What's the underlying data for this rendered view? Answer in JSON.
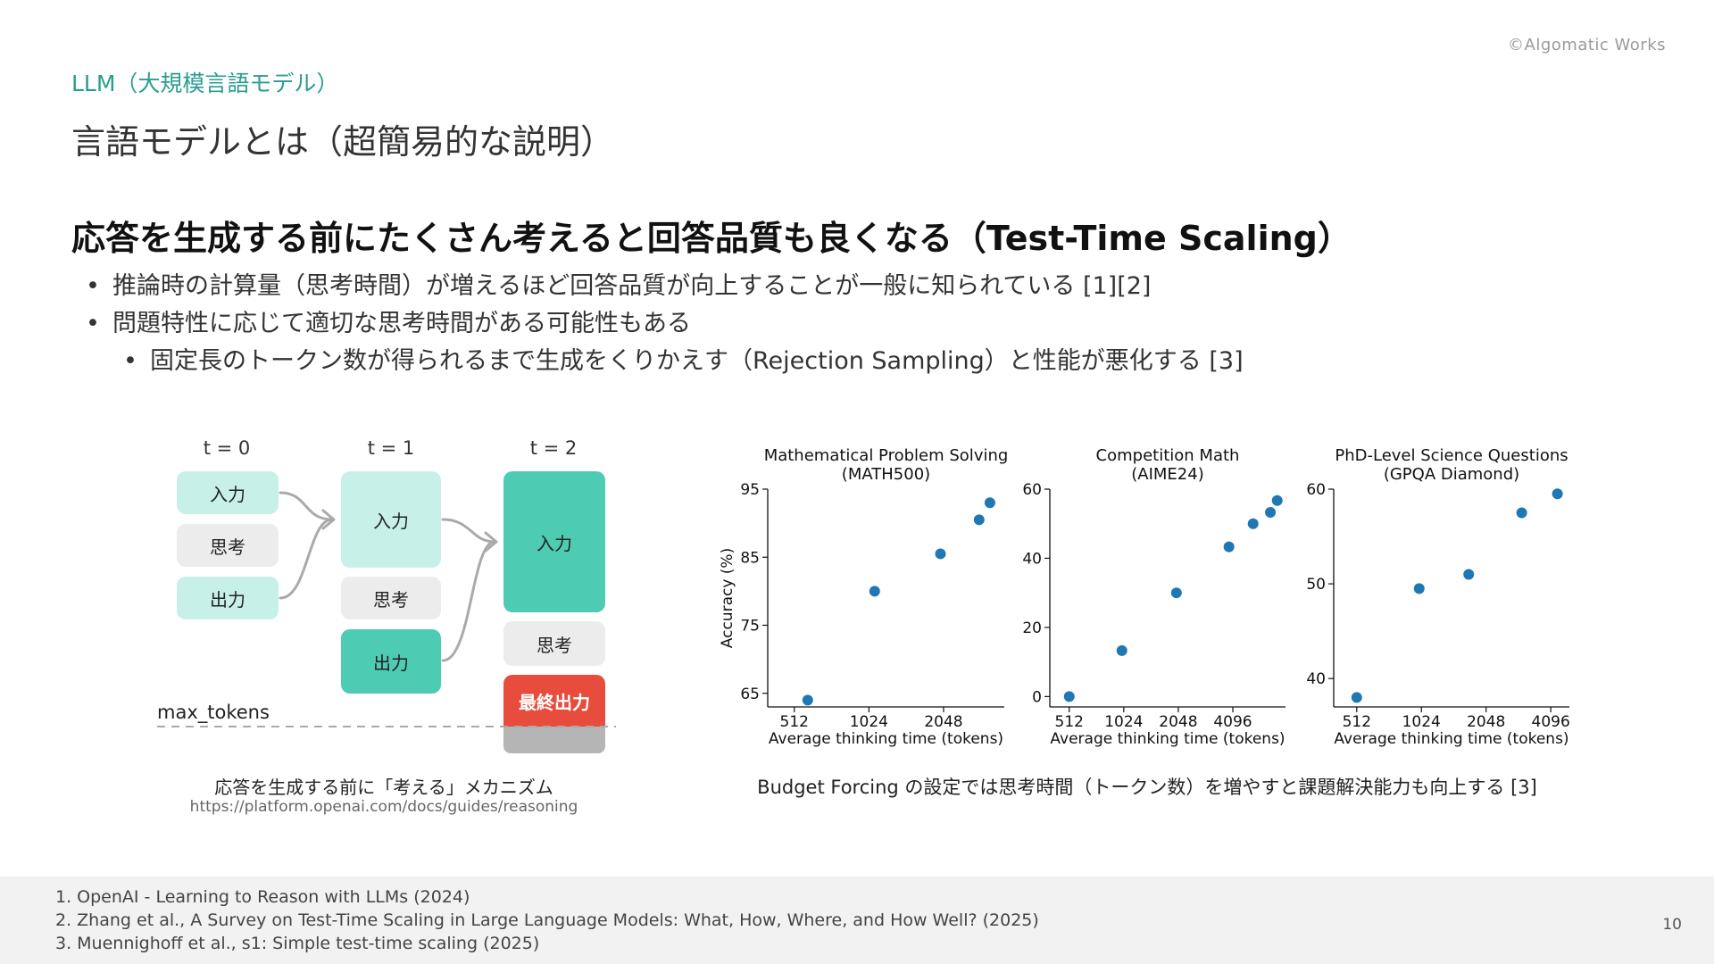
{
  "copyright": "©Algomatic Works",
  "section": "LLM（大規模言語モデル）",
  "title": "言語モデルとは（超簡易的な説明）",
  "heading": "応答を生成する前にたくさん考えると回答品質も良くなる（Test-Time Scaling）",
  "bullets": [
    "推論時の計算量（思考時間）が増えるほど回答品質が向上することが一般に知られている [1][2]",
    "問題特性に応じて適切な思考時間がある可能性もある",
    "固定長のトークン数が得られるまで生成をくりかえす（Rejection Sampling）と性能が悪化する [3]"
  ],
  "diagram": {
    "steps": [
      "t = 0",
      "t = 1",
      "t = 2"
    ],
    "input_label": "入力",
    "think_label": "思考",
    "output_label": "出力",
    "final_label": "最終出力",
    "max_tokens_label": "max_tokens",
    "caption": "応答を生成する前に「考える」メカニズム",
    "url": "https://platform.openai.com/docs/guides/reasoning"
  },
  "chart_caption": "Budget Forcing の設定では思考時間（トークン数）を増やすと課題解決能力も向上する [3]",
  "chart_data": [
    {
      "type": "scatter",
      "title": "Mathematical Problem Solving\n(MATH500)",
      "xlabel": "Average thinking time (tokens)",
      "ylabel": "Accuracy (%)",
      "xscale": "log2",
      "xticks": [
        512,
        1024,
        2048
      ],
      "yticks": [
        65,
        75,
        85,
        95
      ],
      "xlim": [
        400,
        3600
      ],
      "ylim": [
        63,
        95
      ],
      "color": "#1f77b4",
      "x": [
        580,
        1080,
        1990,
        2850,
        3150
      ],
      "y": [
        64,
        80,
        85.5,
        90.5,
        93
      ]
    },
    {
      "type": "scatter",
      "title": "Competition Math\n(AIME24)",
      "xlabel": "Average thinking time (tokens)",
      "ylabel": "",
      "xscale": "log2",
      "xticks": [
        512,
        1024,
        2048,
        4096
      ],
      "yticks": [
        0,
        20,
        40,
        60
      ],
      "xlim": [
        400,
        8000
      ],
      "ylim": [
        -3,
        60
      ],
      "color": "#1f77b4",
      "x": [
        512,
        1000,
        2000,
        3900,
        5300,
        6600,
        7200
      ],
      "y": [
        0,
        13.3,
        30,
        43.3,
        50,
        53.3,
        56.7
      ]
    },
    {
      "type": "scatter",
      "title": "PhD-Level Science Questions\n(GPQA Diamond)",
      "xlabel": "Average thinking time (tokens)",
      "ylabel": "",
      "xscale": "log2",
      "xticks": [
        512,
        1024,
        2048,
        4096
      ],
      "yticks": [
        40,
        50,
        60
      ],
      "xlim": [
        400,
        5000
      ],
      "ylim": [
        37,
        60
      ],
      "color": "#1f77b4",
      "x": [
        512,
        1000,
        1700,
        3000,
        4400
      ],
      "y": [
        38,
        49.5,
        51,
        57.5,
        59.5
      ]
    }
  ],
  "footer": {
    "refs": [
      "1. OpenAI - Learning to Reason with LLMs (2024)",
      "2. Zhang et al., A Survey on Test-Time Scaling in Large Language Models: What, How, Where, and How Well? (2025)",
      "3. Muennighoff et al., s1: Simple test-time scaling (2025)"
    ],
    "page_number": "10"
  }
}
